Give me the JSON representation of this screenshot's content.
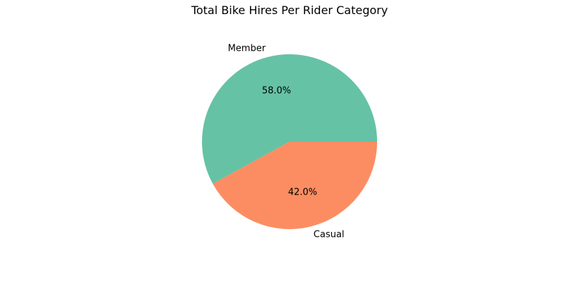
{
  "chart_data": {
    "type": "pie",
    "title": "Total Bike Hires Per Rider Category",
    "slices": [
      {
        "label": "Member",
        "value": 58.0,
        "pct_label": "58.0%",
        "color": "#66c2a5"
      },
      {
        "label": "Casual",
        "value": 42.0,
        "pct_label": "42.0%",
        "color": "#fc8d62"
      }
    ],
    "start_angle_deg": 0,
    "direction": "counterclockwise"
  }
}
